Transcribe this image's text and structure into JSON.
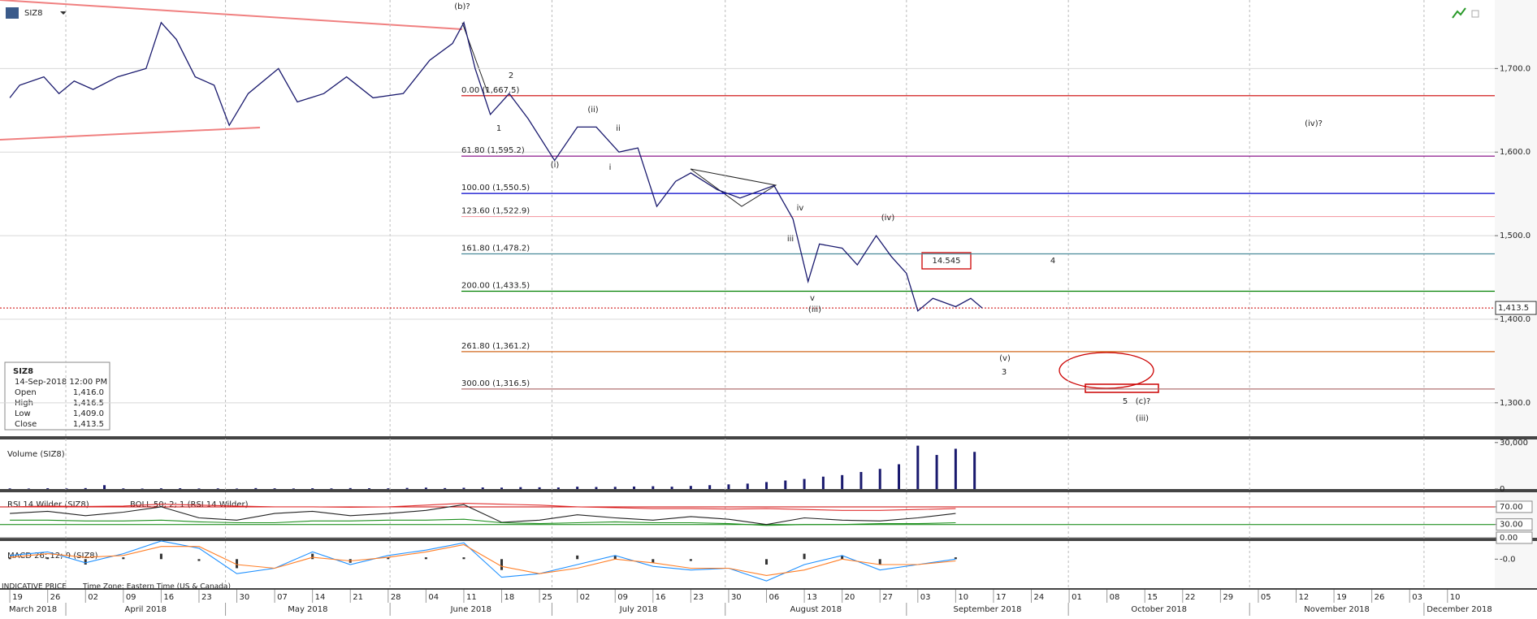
{
  "header": {
    "symbol": "SIZ8"
  },
  "data_window": {
    "symbol": "SIZ8",
    "time": "14-Sep-2018 12:00 PM",
    "rows": [
      [
        "Open",
        "1,416.0"
      ],
      [
        "High",
        "1,416.5"
      ],
      [
        "Low",
        "1,409.0"
      ],
      [
        "Close",
        "1,413.5"
      ]
    ]
  },
  "footer": {
    "price_type": "INDICATIVE PRICE",
    "time_zone": "Time Zone: Eastern Time (US & Canada)"
  },
  "chart_data": [
    {
      "type": "line",
      "color": "#1a1a6e",
      "x": [
        0,
        0.26,
        0.9,
        1.3,
        1.7,
        2.2,
        2.85,
        3.6,
        4.0,
        4.4,
        4.9,
        5.4,
        5.8,
        6.3,
        7.1,
        7.6,
        8.3,
        8.9,
        9.6,
        10.4,
        11.1,
        11.7,
        12.0,
        12.3,
        12.7,
        13.2,
        13.7,
        14.4,
        15.0,
        15.5,
        16.1,
        16.6,
        17.1,
        17.6,
        18.0,
        18.7,
        19.3,
        20.2,
        20.7,
        21.1,
        21.4,
        22.0,
        22.4,
        22.9,
        23.3,
        23.7,
        24.0,
        24.4,
        25.0,
        25.4,
        25.7
      ],
      "values": [
        1665,
        1680,
        1690,
        1670,
        1685,
        1675,
        1690,
        1700,
        1755,
        1735,
        1690,
        1680,
        1632,
        1670,
        1700,
        1660,
        1670,
        1690,
        1665,
        1670,
        1710,
        1730,
        1755,
        1700,
        1645,
        1670,
        1640,
        1590,
        1630,
        1630,
        1600,
        1605,
        1535,
        1565,
        1575,
        1555,
        1545,
        1560,
        1520,
        1445,
        1490,
        1485,
        1465,
        1500,
        1475,
        1455,
        1410,
        1425,
        1415,
        1425,
        1413.5
      ],
      "xlim": [
        -0.26,
        39.25
      ],
      "xticks": [
        {
          "value": 0,
          "label": "19"
        },
        {
          "value": 1,
          "label": "26"
        },
        {
          "value": 2,
          "label": "02"
        },
        {
          "value": 3,
          "label": "09"
        },
        {
          "value": 4,
          "label": "16"
        },
        {
          "value": 5,
          "label": "23"
        },
        {
          "value": 6,
          "label": "30"
        },
        {
          "value": 7,
          "label": "07"
        },
        {
          "value": 8,
          "label": "14"
        },
        {
          "value": 9,
          "label": "21"
        },
        {
          "value": 10,
          "label": "28"
        },
        {
          "value": 11,
          "label": "04"
        },
        {
          "value": 12,
          "label": "11"
        },
        {
          "value": 13,
          "label": "18"
        },
        {
          "value": 14,
          "label": "25"
        },
        {
          "value": 15,
          "label": "02"
        },
        {
          "value": 16,
          "label": "09"
        },
        {
          "value": 17,
          "label": "16"
        },
        {
          "value": 18,
          "label": "23"
        },
        {
          "value": 19,
          "label": "30"
        },
        {
          "value": 20,
          "label": "06"
        },
        {
          "value": 21,
          "label": "13"
        },
        {
          "value": 22,
          "label": "20"
        },
        {
          "value": 23,
          "label": "27"
        },
        {
          "value": 24,
          "label": "03"
        },
        {
          "value": 25,
          "label": "10"
        },
        {
          "value": 26,
          "label": "17"
        },
        {
          "value": 27,
          "label": "24"
        },
        {
          "value": 28,
          "label": "01"
        },
        {
          "value": 29,
          "label": "08"
        },
        {
          "value": 30,
          "label": "15"
        },
        {
          "value": 31,
          "label": "22"
        },
        {
          "value": 32,
          "label": "29"
        },
        {
          "value": 33,
          "label": "05"
        },
        {
          "value": 34,
          "label": "12"
        },
        {
          "value": 35,
          "label": "19"
        },
        {
          "value": 36,
          "label": "26"
        },
        {
          "value": 37,
          "label": "03"
        },
        {
          "value": 38,
          "label": "10"
        }
      ],
      "months": [
        {
          "value": -0.26,
          "label": "March 2018"
        },
        {
          "value": 1.48,
          "label": "April 2018"
        },
        {
          "value": 5.7,
          "label": "May 2018"
        },
        {
          "value": 10.05,
          "label": "June 2018"
        },
        {
          "value": 14.33,
          "label": "July 2018"
        },
        {
          "value": 18.91,
          "label": "August 2018"
        },
        {
          "value": 23.7,
          "label": "September 2018"
        },
        {
          "value": 27.98,
          "label": "October 2018"
        },
        {
          "value": 32.77,
          "label": "November 2018"
        },
        {
          "value": 37.38,
          "label": "December 2018"
        }
      ],
      "ylim": [
        1260,
        1782
      ],
      "yticks": [
        {
          "value": 1300,
          "label": "1,300.0"
        },
        {
          "value": 1400,
          "label": "1,400.0"
        },
        {
          "value": 1500,
          "label": "1,500.0"
        },
        {
          "value": 1600,
          "label": "1,600.0"
        },
        {
          "value": 1700,
          "label": "1,700.0"
        }
      ],
      "grid": true,
      "last_price": {
        "value": 1413.5,
        "label": "1,413.5",
        "color": "#cc0000"
      },
      "fib_levels": [
        {
          "label": "0.00 (1,667.5)",
          "value": 1667.5,
          "color": "#cc0000"
        },
        {
          "label": "61.80 (1,595.2)",
          "value": 1595.2,
          "color": "#800080"
        },
        {
          "label": "100.00 (1,550.5)",
          "value": 1550.5,
          "color": "#0000cc"
        },
        {
          "label": "123.60 (1,522.9)",
          "value": 1522.9,
          "color": "#f4a0a8"
        },
        {
          "label": "161.80 (1,478.2)",
          "value": 1478.2,
          "color": "#4a8a9a"
        },
        {
          "label": "200.00 (1,433.5)",
          "value": 1433.5,
          "color": "#008000"
        },
        {
          "label": "261.80 (1,361.2)",
          "value": 1361.2,
          "color": "#d2691e"
        },
        {
          "label": "300.00 (1,316.5)",
          "value": 1316.5,
          "color": "#b07070"
        }
      ],
      "annotations": [
        {
          "text": "(b)?",
          "color": "#333333"
        },
        {
          "text": "2",
          "color": "#333333"
        },
        {
          "text": "1",
          "color": "#333333"
        },
        {
          "text": "(i)",
          "color": "#333333"
        },
        {
          "text": "(ii)",
          "color": "#333333"
        },
        {
          "text": "ii",
          "color": "#333333"
        },
        {
          "text": "i",
          "color": "#333333"
        },
        {
          "text": "iv",
          "color": "#333333"
        },
        {
          "text": "iii",
          "color": "#333333"
        },
        {
          "text": "(iv)",
          "color": "#333333"
        },
        {
          "text": "v",
          "color": "#333333"
        },
        {
          "text": "(iii)",
          "color": "#333333"
        },
        {
          "text": "4",
          "color": "#333333"
        },
        {
          "text": "(v)",
          "color": "#333333"
        },
        {
          "text": "3",
          "color": "#333333"
        },
        {
          "text": "5",
          "color": "#333333"
        },
        {
          "text": "(c)?",
          "color": "#333333"
        },
        {
          "text": "(iii)",
          "color": "#cc0000"
        },
        {
          "text": "(iv)?",
          "color": "#cc0000"
        },
        {
          "text": "14.545",
          "color": "#cc0000"
        }
      ]
    },
    {
      "type": "bar",
      "title": "Volume (SIZ8)",
      "color": "#1a1a6e",
      "x": [
        0,
        0.5,
        1,
        1.5,
        2,
        2.5,
        3,
        3.5,
        4,
        4.5,
        5,
        5.5,
        6,
        6.5,
        7,
        7.5,
        8,
        8.5,
        9,
        9.5,
        10,
        10.5,
        11,
        11.5,
        12,
        12.5,
        13,
        13.5,
        14,
        14.5,
        15,
        15.5,
        16,
        16.5,
        17,
        17.5,
        18,
        18.5,
        19,
        19.5,
        20,
        20.5,
        21,
        21.5,
        22,
        22.5,
        23,
        23.5,
        24,
        24.5,
        25,
        25.5
      ],
      "values": [
        400,
        300,
        500,
        350,
        600,
        2500,
        400,
        300,
        450,
        500,
        350,
        400,
        300,
        600,
        450,
        350,
        500,
        400,
        600,
        500,
        450,
        700,
        900,
        600,
        800,
        1000,
        900,
        1200,
        1100,
        1000,
        1500,
        1300,
        1400,
        1600,
        1800,
        1500,
        2000,
        2500,
        3000,
        3500,
        4500,
        5500,
        6500,
        8000,
        9000,
        11000,
        13000,
        16000,
        28000,
        22000,
        26000,
        24000
      ],
      "ylim": [
        0,
        32000
      ],
      "yticks": [
        0,
        {
          "value": 30000,
          "label": "30,000"
        }
      ]
    },
    {
      "type": "line",
      "title": "RSI 14 Wilder (SIZ8)",
      "subtitle": "BOLL 50; 2; 1 (RSI 14 Wilder)",
      "x": [
        0,
        1,
        2,
        3,
        4,
        5,
        6,
        7,
        8,
        9,
        10,
        11,
        12,
        13,
        14,
        15,
        16,
        17,
        18,
        19,
        20,
        21,
        22,
        23,
        24,
        25
      ],
      "series": [
        {
          "color": "#222222",
          "values": [
            55,
            60,
            50,
            58,
            70,
            45,
            40,
            55,
            60,
            50,
            55,
            62,
            75,
            35,
            40,
            52,
            45,
            40,
            48,
            42,
            30,
            45,
            40,
            38,
            45,
            55
          ]
        },
        {
          "color": "#e03030",
          "values": [
            70,
            72,
            71,
            72,
            76,
            74,
            72,
            70,
            70,
            69,
            70,
            74,
            78,
            76,
            74,
            70,
            68,
            66,
            66,
            65,
            66,
            64,
            62,
            62,
            64,
            66
          ]
        },
        {
          "color": "#209020",
          "values": [
            40,
            40,
            38,
            38,
            40,
            36,
            34,
            34,
            38,
            38,
            40,
            40,
            42,
            34,
            32,
            34,
            36,
            34,
            34,
            32,
            28,
            30,
            30,
            32,
            32,
            34
          ]
        }
      ],
      "ylim": [
        0,
        103
      ],
      "yticks": [
        {
          "value": 0,
          "label": "0.00"
        },
        {
          "value": 30,
          "label": "30.00"
        },
        {
          "value": 70,
          "label": "70.00"
        }
      ],
      "grid_colors": [
        "#888888",
        "#008000",
        "#cc0000"
      ]
    },
    {
      "type": "line",
      "title": "MACD 26; 12; 9 (SIZ8)",
      "x": [
        0,
        1,
        2,
        3,
        4,
        5,
        6,
        7,
        8,
        9,
        10,
        11,
        12,
        13,
        14,
        15,
        16,
        17,
        18,
        19,
        20,
        21,
        22,
        23,
        24,
        25
      ],
      "series": [
        {
          "color": "#1e90ff",
          "values": [
            2,
            4,
            -2,
            3,
            10,
            6,
            -8,
            -5,
            4,
            -3,
            2,
            5,
            9,
            -10,
            -8,
            -3,
            2,
            -4,
            -6,
            -5,
            -12,
            -3,
            2,
            -6,
            -3,
            0
          ]
        },
        {
          "color": "#ff7f27",
          "values": [
            1,
            3,
            1,
            2,
            7,
            7,
            -3,
            -5,
            1,
            -1,
            1,
            4,
            8,
            -4,
            -8,
            -5,
            0,
            -2,
            -5,
            -5,
            -9,
            -6,
            0,
            -3,
            -3,
            -1
          ]
        }
      ],
      "histogram": {
        "color": "#333333",
        "values": [
          1,
          1,
          -3,
          1,
          3,
          -1,
          -5,
          0,
          3,
          -2,
          1,
          1,
          1,
          -6,
          0,
          2,
          2,
          -2,
          -1,
          0,
          -3,
          3,
          2,
          -3,
          0,
          1
        ]
      },
      "ylim": [
        -16,
        10
      ],
      "yticks": [
        {
          "value": 0,
          "label": "-0.0"
        }
      ]
    }
  ]
}
